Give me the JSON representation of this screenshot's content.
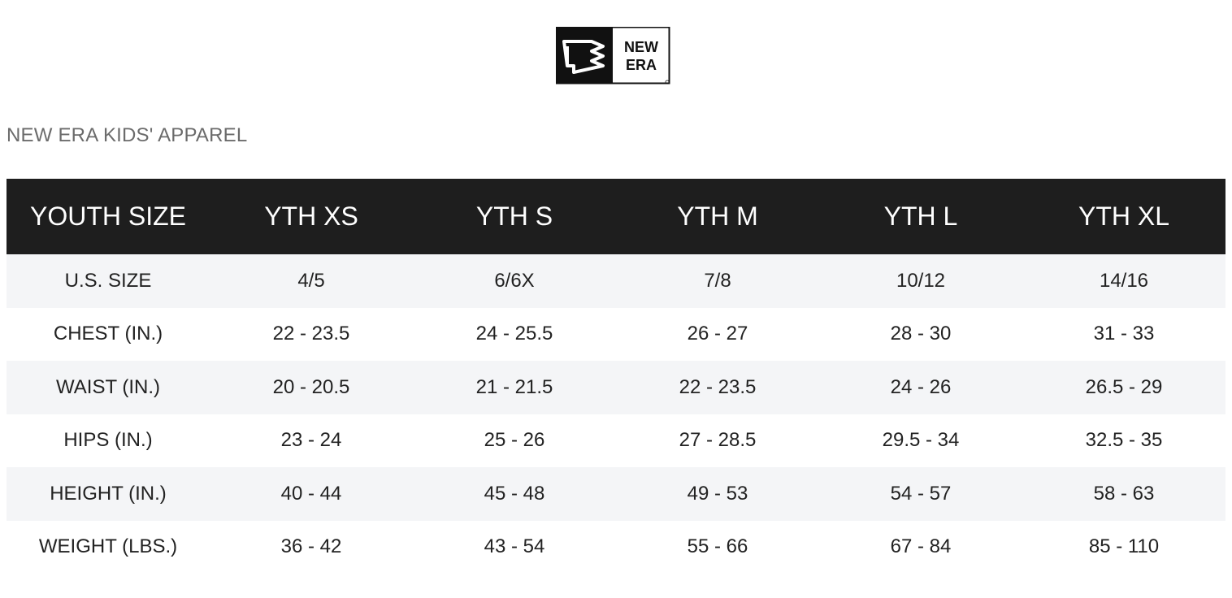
{
  "brand": {
    "name": "NEW ERA",
    "logo_text_line1": "NEW",
    "logo_text_line2": "ERA"
  },
  "section_title": "NEW ERA KIDS' APPAREL",
  "table": {
    "headers": [
      "YOUTH SIZE",
      "YTH XS",
      "YTH S",
      "YTH M",
      "YTH L",
      "YTH XL"
    ],
    "rows": [
      [
        "U.S. SIZE",
        "4/5",
        "6/6X",
        "7/8",
        "10/12",
        "14/16"
      ],
      [
        "CHEST (IN.)",
        "22 - 23.5",
        "24 - 25.5",
        "26 - 27",
        "28 - 30",
        "31 - 33"
      ],
      [
        "WAIST (IN.)",
        "20 - 20.5",
        "21 - 21.5",
        "22 - 23.5",
        "24 - 26",
        "26.5 - 29"
      ],
      [
        "HIPS (IN.)",
        "23 - 24",
        "25 - 26",
        "27 - 28.5",
        "29.5 - 34",
        "32.5 - 35"
      ],
      [
        "HEIGHT (IN.)",
        "40 - 44",
        "45 - 48",
        "49 - 53",
        "54 - 57",
        "58 - 63"
      ],
      [
        "WEIGHT (LBS.)",
        "36 - 42",
        "43 - 54",
        "55 - 66",
        "67 - 84",
        "85 - 110"
      ]
    ]
  },
  "colors": {
    "header_bg": "#1e1e1e",
    "header_text": "#ffffff",
    "row_alt_bg": "#f4f5f7",
    "title_text": "#6b6b6b"
  }
}
